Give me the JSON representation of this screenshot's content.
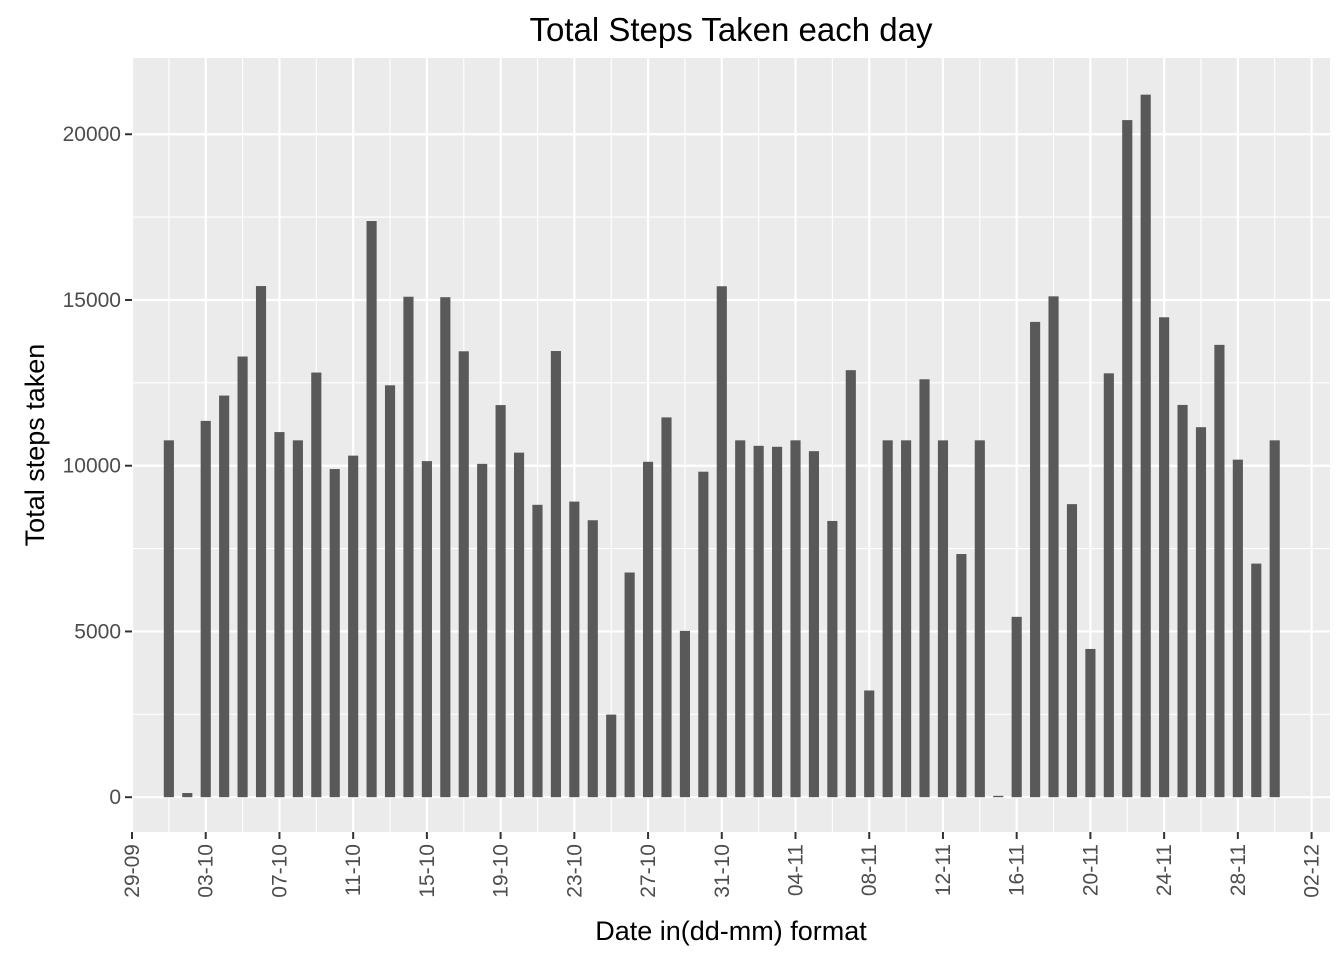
{
  "chart_data": {
    "type": "bar",
    "title": "Total Steps Taken each day",
    "xlabel": "Date in(dd-mm) format",
    "ylabel": "Total steps taken",
    "ylim": [
      -1050,
      22300
    ],
    "yticks": [
      0,
      5000,
      10000,
      15000,
      20000
    ],
    "xlim": [
      "2012-09-29",
      "2012-12-03"
    ],
    "xticks": [
      {
        "date": "2012-09-29",
        "label": "29-09"
      },
      {
        "date": "2012-10-03",
        "label": "03-10"
      },
      {
        "date": "2012-10-07",
        "label": "07-10"
      },
      {
        "date": "2012-10-11",
        "label": "11-10"
      },
      {
        "date": "2012-10-15",
        "label": "15-10"
      },
      {
        "date": "2012-10-19",
        "label": "19-10"
      },
      {
        "date": "2012-10-23",
        "label": "23-10"
      },
      {
        "date": "2012-10-27",
        "label": "27-10"
      },
      {
        "date": "2012-10-31",
        "label": "31-10"
      },
      {
        "date": "2012-11-04",
        "label": "04-11"
      },
      {
        "date": "2012-11-08",
        "label": "08-11"
      },
      {
        "date": "2012-11-12",
        "label": "12-11"
      },
      {
        "date": "2012-11-16",
        "label": "16-11"
      },
      {
        "date": "2012-11-20",
        "label": "20-11"
      },
      {
        "date": "2012-11-24",
        "label": "24-11"
      },
      {
        "date": "2012-11-28",
        "label": "28-11"
      },
      {
        "date": "2012-12-02",
        "label": "02-12"
      }
    ],
    "grid": true,
    "legend": "none",
    "colors": {
      "bar": "#595959",
      "panel": "#ebebeb",
      "grid": "#ffffff",
      "tick_text": "#4d4d4d"
    },
    "x": [
      "2012-10-01",
      "2012-10-02",
      "2012-10-03",
      "2012-10-04",
      "2012-10-05",
      "2012-10-06",
      "2012-10-07",
      "2012-10-08",
      "2012-10-09",
      "2012-10-10",
      "2012-10-11",
      "2012-10-12",
      "2012-10-13",
      "2012-10-14",
      "2012-10-15",
      "2012-10-16",
      "2012-10-17",
      "2012-10-18",
      "2012-10-19",
      "2012-10-20",
      "2012-10-21",
      "2012-10-22",
      "2012-10-23",
      "2012-10-24",
      "2012-10-25",
      "2012-10-26",
      "2012-10-27",
      "2012-10-28",
      "2012-10-29",
      "2012-10-30",
      "2012-10-31",
      "2012-11-01",
      "2012-11-02",
      "2012-11-03",
      "2012-11-04",
      "2012-11-05",
      "2012-11-06",
      "2012-11-07",
      "2012-11-08",
      "2012-11-09",
      "2012-11-10",
      "2012-11-11",
      "2012-11-12",
      "2012-11-13",
      "2012-11-14",
      "2012-11-15",
      "2012-11-16",
      "2012-11-17",
      "2012-11-18",
      "2012-11-19",
      "2012-11-20",
      "2012-11-21",
      "2012-11-22",
      "2012-11-23",
      "2012-11-24",
      "2012-11-25",
      "2012-11-26",
      "2012-11-27",
      "2012-11-28",
      "2012-11-29",
      "2012-11-30"
    ],
    "values": [
      10766,
      126,
      11352,
      12116,
      13294,
      15420,
      11015,
      10766,
      12811,
      9900,
      10304,
      17382,
      12426,
      15098,
      10139,
      15084,
      13452,
      10056,
      11829,
      10395,
      8821,
      13460,
      8918,
      8355,
      2492,
      6778,
      10119,
      11458,
      5018,
      9819,
      15414,
      10766,
      10600,
      10571,
      10766,
      10439,
      8334,
      12883,
      3219,
      10766,
      10766,
      12608,
      10765,
      7336,
      10766,
      41,
      5441,
      14339,
      15110,
      8841,
      4472,
      12787,
      20427,
      21194,
      14478,
      11834,
      11162,
      13646,
      10183,
      7047,
      10766
    ]
  }
}
